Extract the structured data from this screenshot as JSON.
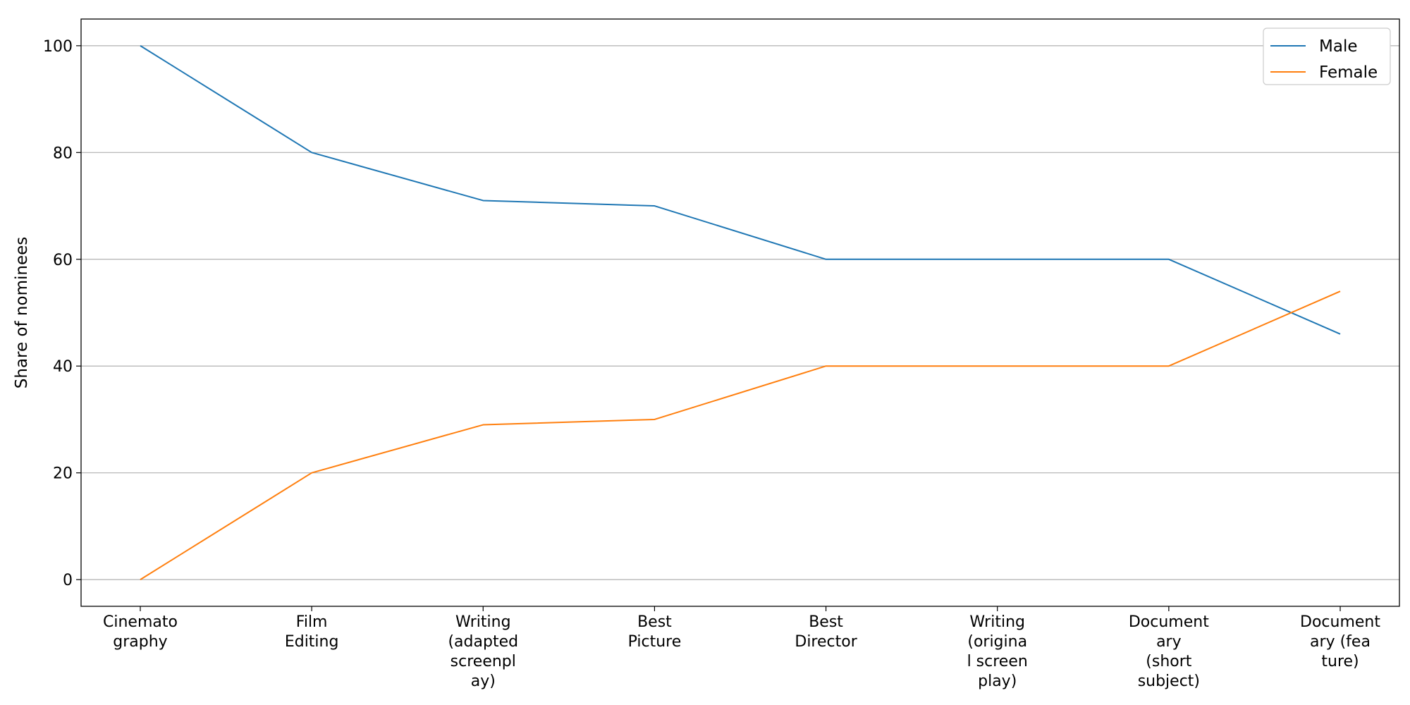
{
  "chart_data": {
    "type": "line",
    "title": "",
    "xlabel": "",
    "ylabel": "Share of nominees",
    "categories": [
      [
        "Cinemato",
        "graphy"
      ],
      [
        "Film",
        "Editing"
      ],
      [
        "Writing",
        "(adapted",
        "screenpl",
        "ay)"
      ],
      [
        "Best",
        "Picture"
      ],
      [
        "Best",
        "Director"
      ],
      [
        "Writing",
        "(origina",
        "l screen",
        "play)"
      ],
      [
        "Document",
        "ary",
        "(short",
        "subject)"
      ],
      [
        "Document",
        "ary (fea",
        "ture)"
      ]
    ],
    "series": [
      {
        "name": "Male",
        "color": "#1f77b4",
        "values": [
          100,
          80,
          71,
          70,
          60,
          60,
          60,
          46
        ]
      },
      {
        "name": "Female",
        "color": "#ff7f0e",
        "values": [
          0,
          20,
          29,
          30,
          40,
          40,
          40,
          54
        ]
      }
    ],
    "yticks": [
      "0",
      "20",
      "40",
      "60",
      "80",
      "100"
    ],
    "ylim": [
      -5,
      105
    ],
    "grid": "horizontal",
    "legend": "top-right"
  }
}
